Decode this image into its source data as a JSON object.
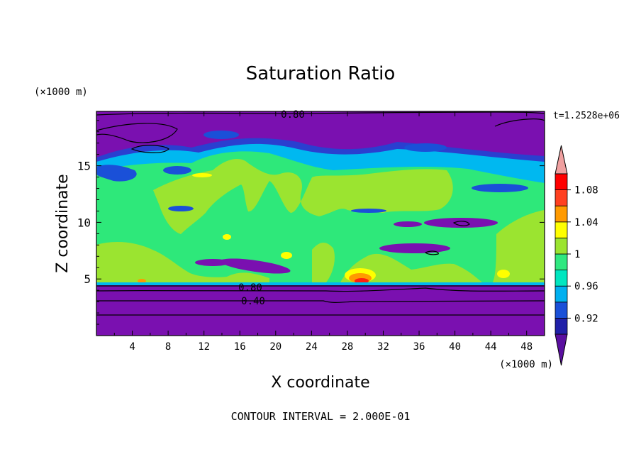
{
  "chart_data": {
    "type": "heatmap",
    "title": "Saturation Ratio",
    "xlabel": "X coordinate",
    "ylabel": "Z coordinate",
    "x_unit": "(×1000 m)",
    "y_unit": "(×1000 m)",
    "xlim": [
      0,
      50
    ],
    "ylim": [
      0,
      19.8
    ],
    "x_ticks": [
      4,
      8,
      12,
      16,
      20,
      24,
      28,
      32,
      36,
      40,
      44,
      48
    ],
    "y_ticks": [
      5,
      10,
      15
    ],
    "time_label": "t=1.2528e+06",
    "contour_interval": "CONTOUR INTERVAL = 2.000E-01",
    "contour_labels": [
      "0.80",
      "0.80",
      "0.40"
    ],
    "colorbar": {
      "tick_labels": [
        "1.08",
        "1.04",
        "1",
        "0.96",
        "0.92"
      ],
      "tick_values": [
        1.08,
        1.04,
        1.0,
        0.96,
        0.92
      ],
      "level_bounds": [
        0.9,
        0.92,
        0.94,
        0.96,
        0.98,
        1.0,
        1.02,
        1.04,
        1.06,
        1.08,
        1.1
      ],
      "colors": [
        "#5a0fa0",
        "#2020a8",
        "#1a50d8",
        "#00b0f0",
        "#00e6c0",
        "#30e880",
        "#9be430",
        "#ffff00",
        "#ff9a00",
        "#ff4020",
        "#ff0000",
        "#f0a0a0"
      ]
    },
    "regions": [
      {
        "level": "<0.90",
        "color": "#7a10b0",
        "description": "upper layer z > ~15.5"
      },
      {
        "level": "0.98-1.00",
        "color": "#2ee87a",
        "description": "mid layer 5-15"
      },
      {
        "level": "<0.90",
        "color": "#7a10b0",
        "description": "lower layer z < 4.7"
      }
    ]
  }
}
